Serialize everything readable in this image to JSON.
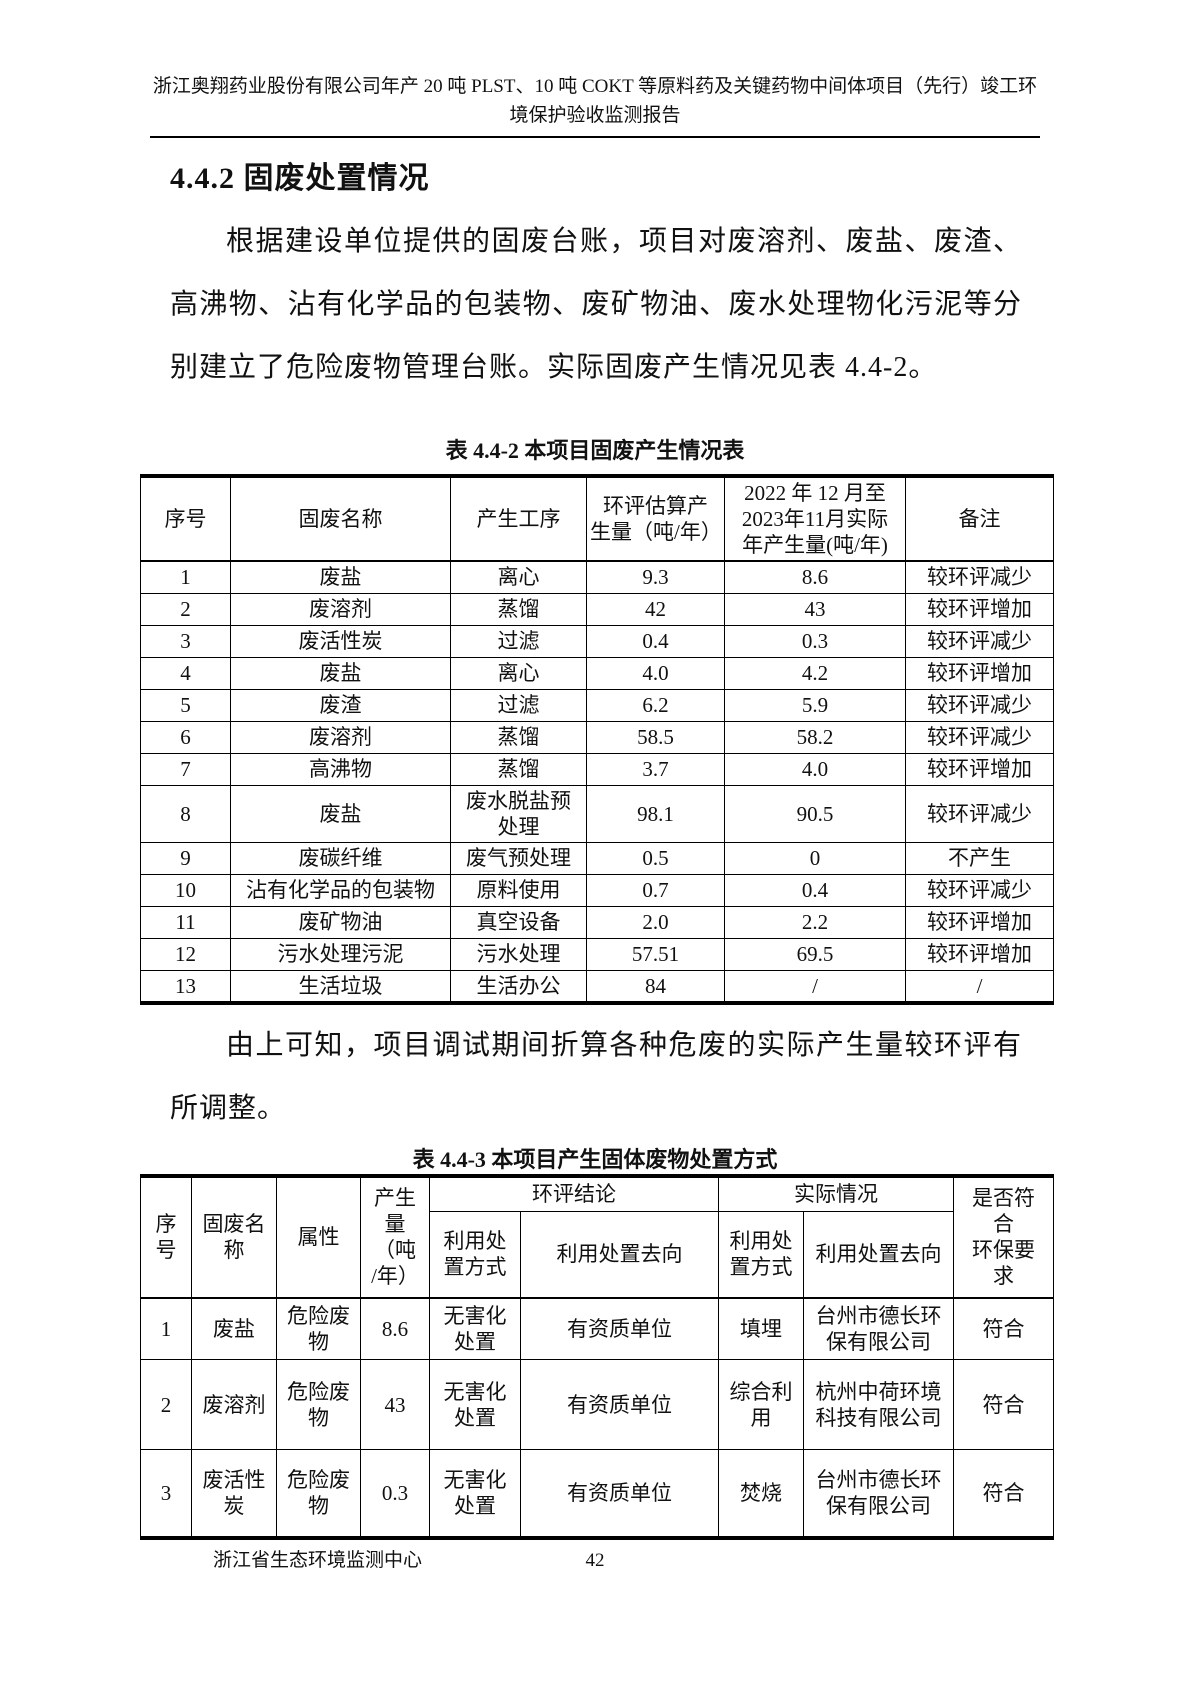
{
  "doc": {
    "header_line1": "浙江奥翔药业股份有限公司年产 20 吨 PLST、10 吨 COKT 等原料药及关键药物中间体项目（先行）竣工环",
    "header_line2": "境保护验收监测报告",
    "footer_org": "浙江省生态环境监测中心",
    "page_number": "42"
  },
  "section": {
    "heading": "4.4.2 固废处置情况",
    "paragraph1": "根据建设单位提供的固废台账，项目对废溶剂、废盐、废渣、高沸物、沾有化学品的包装物、废矿物油、废水处理物化污泥等分别建立了危险废物管理台账。实际固废产生情况见表 4.4-2。",
    "paragraph2": "由上可知，项目调试期间折算各种危废的实际产生量较环评有所调整。"
  },
  "table1": {
    "caption": "表 4.4-2  本项目固废产生情况表",
    "headers": {
      "col1": "序号",
      "col2": "固废名称",
      "col3": "产生工序",
      "col4": "环评估算产\n生量（吨/年）",
      "col5": "2022 年 12 月至\n2023年11月实际\n年产生量(吨/年)",
      "col6": "备注"
    },
    "rows": [
      [
        "1",
        "废盐",
        "离心",
        "9.3",
        "8.6",
        "较环评减少"
      ],
      [
        "2",
        "废溶剂",
        "蒸馏",
        "42",
        "43",
        "较环评增加"
      ],
      [
        "3",
        "废活性炭",
        "过滤",
        "0.4",
        "0.3",
        "较环评减少"
      ],
      [
        "4",
        "废盐",
        "离心",
        "4.0",
        "4.2",
        "较环评增加"
      ],
      [
        "5",
        "废渣",
        "过滤",
        "6.2",
        "5.9",
        "较环评减少"
      ],
      [
        "6",
        "废溶剂",
        "蒸馏",
        "58.5",
        "58.2",
        "较环评减少"
      ],
      [
        "7",
        "高沸物",
        "蒸馏",
        "3.7",
        "4.0",
        "较环评增加"
      ],
      [
        "8",
        "废盐",
        "废水脱盐预\n处理",
        "98.1",
        "90.5",
        "较环评减少"
      ],
      [
        "9",
        "废碳纤维",
        "废气预处理",
        "0.5",
        "0",
        "不产生"
      ],
      [
        "10",
        "沾有化学品的包装物",
        "原料使用",
        "0.7",
        "0.4",
        "较环评减少"
      ],
      [
        "11",
        "废矿物油",
        "真空设备",
        "2.0",
        "2.2",
        "较环评增加"
      ],
      [
        "12",
        "污水处理污泥",
        "污水处理",
        "57.51",
        "69.5",
        "较环评增加"
      ],
      [
        "13",
        "生活垃圾",
        "生活办公",
        "84",
        "/",
        "/"
      ]
    ]
  },
  "table2": {
    "caption": "表 4.4-3  本项目产生固体废物处置方式",
    "headers": {
      "xuhao": "序\n号",
      "name": "固废名\n称",
      "attr": "属性",
      "amount": "产生\n量\n（吨\n/年）",
      "eia_group": "环评结论",
      "actual_group": "实际情况",
      "eia_method": "利用处\n置方式",
      "eia_dest": "利用处置去向",
      "actual_method": "利用处\n置方式",
      "actual_dest": "利用处置去向",
      "comply": "是否符\n合\n环保要\n求"
    },
    "rows": [
      [
        "1",
        "废盐",
        "危险废\n物",
        "8.6",
        "无害化\n处置",
        "有资质单位",
        "填埋",
        "台州市德长环\n保有限公司",
        "符合"
      ],
      [
        "2",
        "废溶剂",
        "危险废\n物",
        "43",
        "无害化\n处置",
        "有资质单位",
        "综合利\n用",
        "杭州中荷环境\n科技有限公司",
        "符合"
      ],
      [
        "3",
        "废活性\n炭",
        "危险废\n物",
        "0.3",
        "无害化\n处置",
        "有资质单位",
        "焚烧",
        "台州市德长环\n保有限公司",
        "符合"
      ]
    ]
  }
}
